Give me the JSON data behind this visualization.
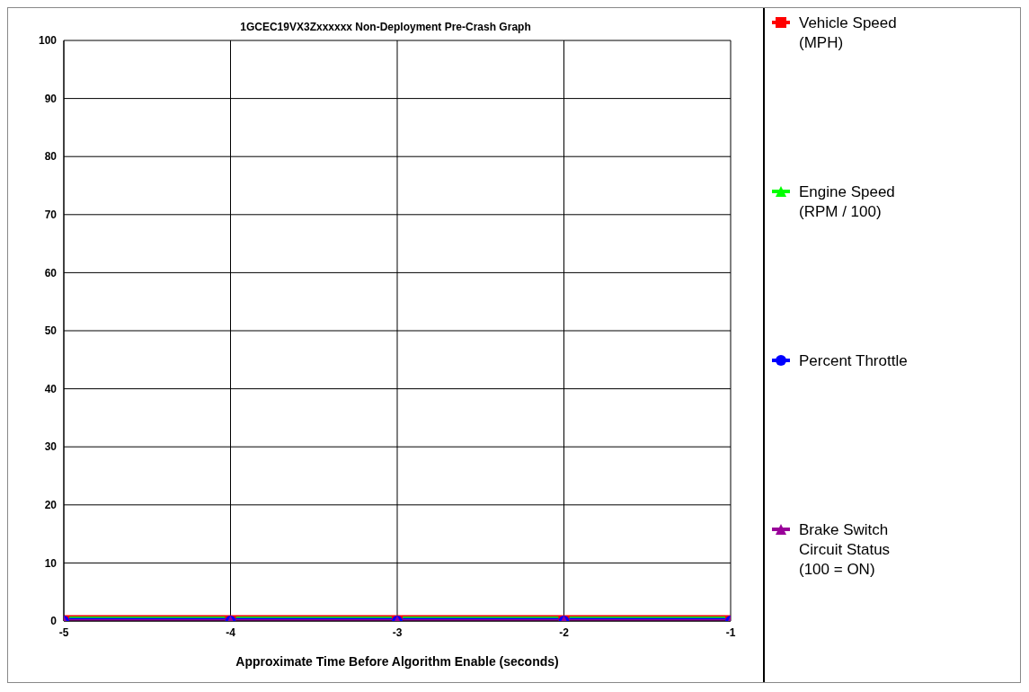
{
  "chart_data": {
    "type": "line",
    "title": "1GCEC19VX3Zxxxxxx Non-Deployment Pre-Crash Graph",
    "xlabel": "Approximate Time Before Algorithm Enable (seconds)",
    "x": [
      -5,
      -4,
      -3,
      -2,
      -1
    ],
    "series": [
      {
        "name": "Vehicle Speed (MPH)",
        "color": "#ff0000",
        "marker": "square",
        "values": [
          0,
          0,
          0,
          0,
          0
        ]
      },
      {
        "name": "Engine Speed (RPM / 100)",
        "color": "#00ff00",
        "marker": "triangle",
        "values": [
          0,
          0,
          0,
          0,
          0
        ]
      },
      {
        "name": "Percent Throttle",
        "color": "#0000ff",
        "marker": "circle",
        "values": [
          0,
          0,
          0,
          0,
          0
        ]
      },
      {
        "name": "Brake Switch Circuit Status (100 = ON)",
        "color": "#990099",
        "marker": "triangle",
        "values": [
          0,
          0,
          0,
          0,
          0
        ]
      }
    ],
    "xlim": [
      -5,
      -1
    ],
    "xticks": [
      -5,
      -4,
      -3,
      -2,
      -1
    ],
    "ylim": [
      0,
      100
    ],
    "yticks": [
      0,
      10,
      20,
      30,
      40,
      50,
      60,
      70,
      80,
      90,
      100
    ],
    "grid": true,
    "legend": "right",
    "line_style": "solid"
  }
}
